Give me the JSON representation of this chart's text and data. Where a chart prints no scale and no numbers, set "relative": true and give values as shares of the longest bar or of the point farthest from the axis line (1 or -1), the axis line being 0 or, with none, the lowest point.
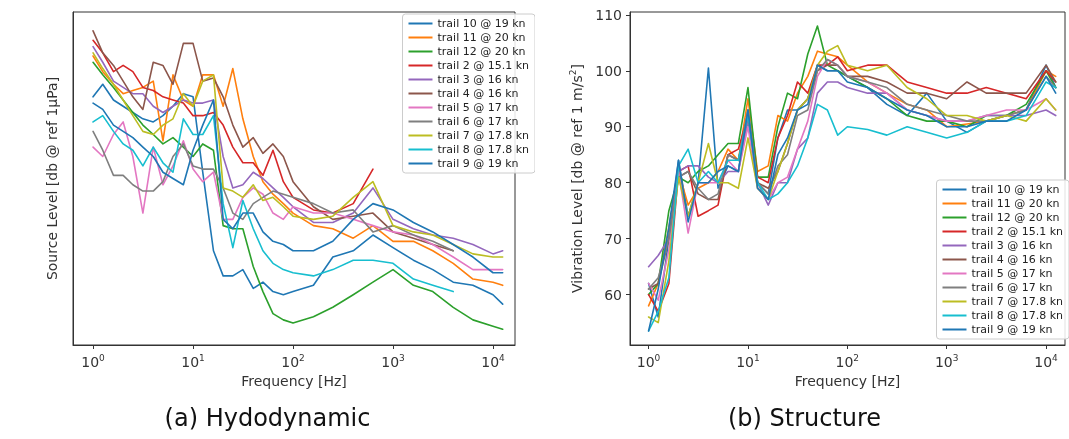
{
  "chart_data": [
    {
      "type": "line",
      "title": "(a) Hydodynamic",
      "xlabel": "Frequency [Hz]",
      "ylabel": "Source Level [db @ ref 1μPa]",
      "relative": true,
      "log": "x",
      "xlim": [
        0.63,
        16600
      ],
      "xticks": [
        {
          "value": 1,
          "label": "10$^{0}$"
        },
        {
          "value": 10,
          "label": "10$^{1}$"
        },
        {
          "value": 100,
          "label": "10$^{2}$"
        },
        {
          "value": 1000,
          "label": "10$^{3}$"
        },
        {
          "value": 10000,
          "label": "10$^{4}$"
        }
      ],
      "legend": "top right",
      "line_style": "solid",
      "x": [
        1,
        1.25,
        1.6,
        2,
        2.5,
        3.15,
        4,
        5,
        6.3,
        8,
        10,
        12.5,
        16,
        20,
        25,
        31.5,
        40,
        50,
        63,
        80,
        100,
        160,
        250,
        400,
        630,
        1000,
        1600,
        2500,
        4000,
        6300,
        10000,
        12500
      ],
      "series": [
        {
          "name": "trail 10 @ 19 kn",
          "color": "#1f77b4",
          "values": [
            0.79,
            0.83,
            0.78,
            0.76,
            0.74,
            0.72,
            0.71,
            0.73,
            0.76,
            0.8,
            0.79,
            0.55,
            0.3,
            0.22,
            0.22,
            0.24,
            0.18,
            0.2,
            0.17,
            0.16,
            0.17,
            0.19,
            0.28,
            0.3,
            0.35,
            0.31,
            0.27,
            0.24,
            0.2,
            0.19,
            0.16,
            0.13
          ]
        },
        {
          "name": "trail 11 @ 20 kn",
          "color": "#ff7f0e",
          "values": [
            0.92,
            0.87,
            0.83,
            0.8,
            0.81,
            0.82,
            0.84,
            0.65,
            0.86,
            0.78,
            0.76,
            0.86,
            0.86,
            0.76,
            0.88,
            0.72,
            0.6,
            0.52,
            0.48,
            0.45,
            0.42,
            0.38,
            0.37,
            0.34,
            0.38,
            0.33,
            0.33,
            0.3,
            0.26,
            0.21,
            0.2,
            0.19
          ]
        },
        {
          "name": "trail 12 @ 20 kn",
          "color": "#2ca02c",
          "values": [
            0.9,
            0.86,
            0.82,
            0.78,
            0.74,
            0.7,
            0.67,
            0.64,
            0.66,
            0.63,
            0.6,
            0.64,
            0.62,
            0.38,
            0.37,
            0.37,
            0.25,
            0.17,
            0.1,
            0.08,
            0.07,
            0.09,
            0.12,
            0.16,
            0.2,
            0.24,
            0.19,
            0.17,
            0.12,
            0.08,
            0.06,
            0.05
          ]
        },
        {
          "name": "trail 2 @ 15.1 kn",
          "color": "#d62728",
          "values": [
            0.97,
            0.93,
            0.87,
            0.89,
            0.87,
            0.82,
            0.81,
            0.79,
            0.78,
            0.77,
            0.73,
            0.73,
            0.74,
            0.7,
            0.63,
            0.58,
            0.58,
            0.54,
            0.62,
            0.52,
            0.47,
            0.43,
            0.42,
            0.45,
            0.56,
            null,
            null,
            null,
            null,
            null,
            null,
            null
          ]
        },
        {
          "name": "trail 3 @ 16 kn",
          "color": "#9467bd",
          "values": [
            0.95,
            0.9,
            0.84,
            0.82,
            0.8,
            0.8,
            0.76,
            0.74,
            0.76,
            0.78,
            0.77,
            0.77,
            0.78,
            0.6,
            0.5,
            0.51,
            0.55,
            0.53,
            0.5,
            0.47,
            0.44,
            0.39,
            0.39,
            0.42,
            0.5,
            0.4,
            0.37,
            0.35,
            0.34,
            0.32,
            0.29,
            0.3
          ]
        },
        {
          "name": "trail 4 @ 16 kn",
          "color": "#8c564b",
          "values": [
            1,
            0.93,
            0.89,
            0.84,
            0.79,
            0.75,
            0.9,
            0.89,
            0.83,
            0.96,
            0.96,
            0.84,
            0.85,
            0.79,
            0.7,
            0.63,
            0.66,
            0.61,
            0.64,
            0.6,
            0.52,
            0.44,
            0.4,
            0.41,
            0.42,
            0.36,
            0.34,
            0.32,
            0.3,
            null,
            null,
            null
          ]
        },
        {
          "name": "trail 5 @ 17 kn",
          "color": "#e377c2",
          "values": [
            0.63,
            0.6,
            0.67,
            0.71,
            0.6,
            0.42,
            0.63,
            0.51,
            0.57,
            0.65,
            0.56,
            0.52,
            0.55,
            0.4,
            0.4,
            0.47,
            0.5,
            0.48,
            0.42,
            0.4,
            0.44,
            0.42,
            0.42,
            0.4,
            0.38,
            0.36,
            0.35,
            0.32,
            0.28,
            0.24,
            0.24,
            0.24
          ]
        },
        {
          "name": "trail 6 @ 17 kn",
          "color": "#7f7f7f",
          "values": [
            0.68,
            0.62,
            0.54,
            0.54,
            0.51,
            0.49,
            0.49,
            0.52,
            0.6,
            0.64,
            0.57,
            0.56,
            0.56,
            0.5,
            0.42,
            0.4,
            0.45,
            0.47,
            0.49,
            0.48,
            0.47,
            0.45,
            0.42,
            0.43,
            0.36,
            0.38,
            0.35,
            0.33,
            0.3,
            null,
            null,
            null
          ]
        },
        {
          "name": "trail 7 @ 17.8 kn",
          "color": "#bcbd22",
          "values": [
            0.93,
            0.88,
            0.83,
            0.78,
            0.73,
            0.68,
            0.67,
            0.7,
            0.72,
            0.8,
            0.76,
            0.84,
            0.86,
            0.5,
            0.49,
            0.47,
            0.51,
            0.46,
            0.47,
            0.44,
            0.41,
            0.4,
            0.41,
            0.47,
            0.52,
            0.38,
            0.36,
            0.35,
            0.32,
            0.29,
            0.28,
            0.28
          ]
        },
        {
          "name": "trail 8 @ 17.8 kn",
          "color": "#17becf",
          "values": [
            0.71,
            0.73,
            0.68,
            0.64,
            0.62,
            0.57,
            0.63,
            0.58,
            0.55,
            0.72,
            0.67,
            0.67,
            0.73,
            0.45,
            0.31,
            0.46,
            0.37,
            0.3,
            0.26,
            0.24,
            0.23,
            0.22,
            0.24,
            0.27,
            0.27,
            0.26,
            0.21,
            0.19,
            0.17,
            null,
            null,
            null
          ]
        },
        {
          "name": "trail 9 @ 19 kn",
          "color": "#1f77b4",
          "values": [
            0.77,
            0.75,
            0.7,
            0.68,
            0.66,
            0.63,
            0.6,
            0.55,
            0.53,
            0.51,
            0.62,
            0.7,
            0.78,
            0.4,
            0.37,
            0.42,
            0.42,
            0.36,
            0.33,
            0.32,
            0.3,
            0.3,
            0.33,
            0.4,
            0.45,
            0.43,
            0.39,
            0.36,
            0.32,
            0.28,
            0.23,
            0.23
          ]
        }
      ]
    },
    {
      "type": "line",
      "title": "(b) Structure",
      "xlabel": "Frequency [Hz]",
      "ylabel": "Vibration Level [db @ ref 1 m/s$^{2}$]",
      "log": "x",
      "xlim": [
        0.65,
        15500
      ],
      "xticks": [
        {
          "value": 1,
          "label": "10$^{0}$"
        },
        {
          "value": 10,
          "label": "10$^{1}$"
        },
        {
          "value": 100,
          "label": "10$^{2}$"
        },
        {
          "value": 1000,
          "label": "10$^{3}$"
        },
        {
          "value": 10000,
          "label": "10$^{4}$"
        }
      ],
      "ylim": [
        51,
        110.5
      ],
      "yticks": [
        60,
        70,
        80,
        90,
        100,
        110
      ],
      "legend": "bottom right",
      "line_style": "solid",
      "x": [
        1,
        1.25,
        1.6,
        2,
        2.5,
        3.15,
        4,
        5,
        6.3,
        8,
        10,
        12.5,
        16,
        20,
        25,
        31.5,
        40,
        50,
        63,
        80,
        100,
        160,
        250,
        400,
        630,
        1000,
        1600,
        2500,
        4000,
        6300,
        10000,
        12500
      ],
      "series": [
        {
          "name": "trail 10 @ 19 kn",
          "color": "#1f77b4",
          "values": [
            62,
            56,
            70,
            84,
            74,
            80,
            100.5,
            79,
            83,
            82,
            93,
            80,
            78,
            88,
            93,
            93,
            95,
            101,
            100,
            100,
            99,
            97,
            94,
            92,
            96,
            91,
            89,
            91,
            92,
            93,
            101,
            97
          ]
        },
        {
          "name": "trail 11 @ 20 kn",
          "color": "#ff7f0e",
          "values": [
            58,
            62,
            72,
            82,
            76,
            79,
            80,
            82,
            86,
            84,
            95,
            82,
            83,
            92,
            91,
            96,
            99,
            103.5,
            103,
            102.5,
            101,
            98,
            96,
            94,
            93,
            90,
            90.5,
            91,
            92,
            93,
            100,
            99
          ]
        },
        {
          "name": "trail 12 @ 20 kn",
          "color": "#2ca02c",
          "values": [
            60,
            62,
            75,
            81,
            80,
            82,
            83,
            85,
            87,
            87,
            97,
            81,
            81,
            90,
            96,
            95,
            103,
            108,
            101,
            100,
            99,
            97,
            95,
            92,
            91,
            91,
            90,
            92,
            92,
            94,
            100,
            97
          ]
        },
        {
          "name": "trail 2 @ 15.1 kn",
          "color": "#d62728",
          "values": [
            60,
            57,
            62,
            82,
            83,
            74,
            75,
            76,
            85,
            86,
            92,
            81,
            80,
            88,
            92,
            98,
            96,
            101,
            101,
            102.5,
            100,
            101,
            101,
            98,
            97,
            96,
            96,
            97,
            96,
            95,
            100,
            98
          ]
        },
        {
          "name": "trail 3 @ 16 kn",
          "color": "#9467bd",
          "values": [
            65,
            67,
            70,
            82,
            83,
            83,
            81,
            80,
            82,
            82,
            91,
            80,
            76,
            80,
            80,
            86,
            88,
            96,
            98,
            98,
            97,
            96,
            96,
            93,
            92,
            91,
            91,
            92,
            92,
            92,
            93,
            92
          ]
        },
        {
          "name": "trail 4 @ 16 kn",
          "color": "#8c564b",
          "values": [
            61,
            62,
            70,
            81,
            82,
            78,
            77,
            77,
            85,
            84,
            92,
            80,
            79,
            82,
            87,
            93,
            95,
            100,
            101,
            101,
            99,
            99,
            98,
            96,
            96,
            95,
            98,
            96,
            96,
            96,
            101,
            98
          ]
        },
        {
          "name": "trail 5 @ 17 kn",
          "color": "#e377c2",
          "values": [
            62,
            59,
            68,
            82,
            71,
            80,
            80,
            80,
            84,
            82,
            90,
            79,
            77,
            80,
            81,
            86,
            91,
            99,
            102,
            101,
            99,
            98,
            96,
            93,
            92,
            91,
            91,
            92,
            93,
            93,
            95,
            93
          ]
        },
        {
          "name": "trail 6 @ 17 kn",
          "color": "#7f7f7f",
          "values": [
            61,
            63,
            70,
            81,
            82,
            79,
            77,
            78,
            85,
            84,
            93,
            80,
            78,
            83,
            85,
            92,
            93,
            100,
            102,
            101,
            99,
            98,
            97,
            94,
            93,
            92,
            91,
            91,
            92,
            93,
            99,
            97
          ]
        },
        {
          "name": "trail 7 @ 17.8 kn",
          "color": "#bcbd22",
          "values": [
            56,
            55,
            66,
            81,
            74,
            80,
            87,
            80,
            80,
            79,
            88,
            79,
            77,
            82,
            87,
            93,
            95,
            101,
            103.5,
            104.5,
            101,
            100,
            101,
            97,
            95,
            92,
            92,
            91,
            92,
            91,
            95,
            93
          ]
        },
        {
          "name": "trail 8 @ 17.8 kn",
          "color": "#17becf",
          "values": [
            53.5,
            57,
            63,
            83,
            86,
            80,
            82,
            80,
            84,
            84,
            92,
            80,
            77,
            78,
            80,
            83,
            88,
            94,
            93,
            88.5,
            90,
            89.5,
            88.5,
            90,
            89,
            88,
            89,
            91,
            91,
            92,
            98,
            97
          ]
        },
        {
          "name": "trail 9 @ 19 kn",
          "color": "#1f77b4",
          "values": [
            53.5,
            61,
            72,
            84,
            73,
            80,
            80,
            82,
            83,
            82,
            93,
            79,
            77,
            85,
            88,
            93,
            94,
            101,
            100,
            100,
            98,
            97,
            95,
            93,
            92,
            90,
            90,
            91,
            91,
            93,
            99,
            96
          ]
        }
      ]
    }
  ]
}
